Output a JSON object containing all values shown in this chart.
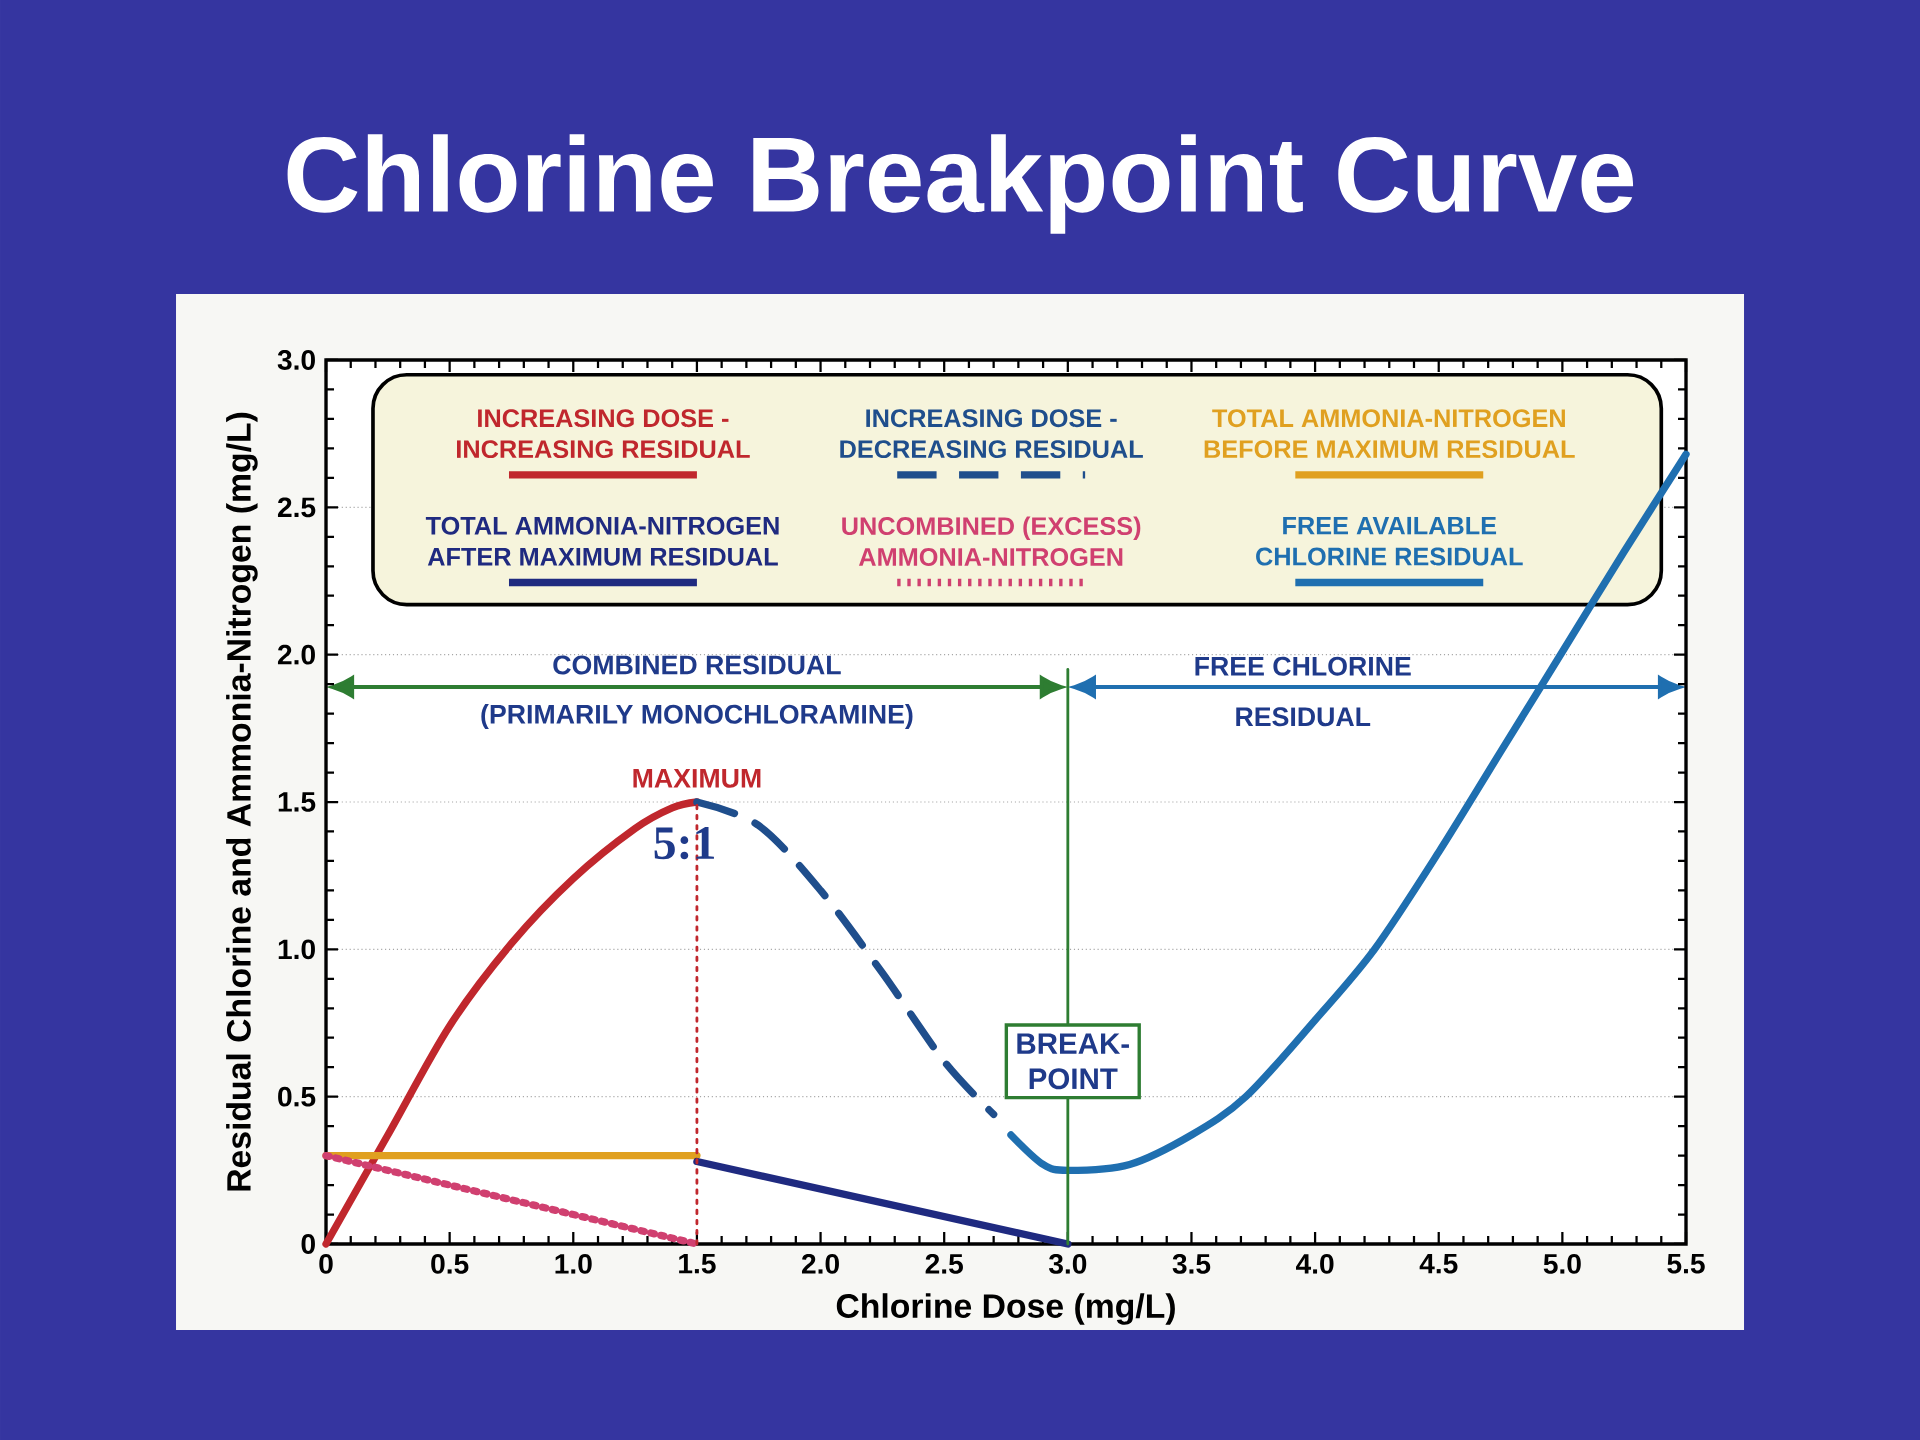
{
  "chart_data": {
    "type": "line",
    "title": "Chlorine Breakpoint Curve",
    "xlabel": "Chlorine Dose (mg/L)",
    "ylabel": "Residual Chlorine and Ammonia-Nitrogen (mg/L)",
    "xlim": [
      0,
      5.5
    ],
    "ylim": [
      0,
      3.0
    ],
    "xticks": [
      0,
      0.5,
      {
        "value": 1,
        "label": "1.0"
      },
      1.5,
      {
        "value": 2,
        "label": "2.0"
      },
      2.5,
      {
        "value": 3,
        "label": "3.0"
      },
      3.5,
      {
        "value": 4,
        "label": "4.0"
      },
      4.5,
      {
        "value": 5,
        "label": "5.0"
      },
      5.5
    ],
    "yticks": [
      0,
      0.5,
      {
        "value": 1,
        "label": "1.0"
      },
      1.5,
      {
        "value": 2,
        "label": "2.0"
      },
      2.5,
      {
        "value": 3,
        "label": "3.0"
      }
    ],
    "grid": "y",
    "legend": "top",
    "series": [
      {
        "name": "INCREASING DOSE - INCREASING RESIDUAL",
        "color": "#c0272d",
        "line_style": "solid",
        "x": [
          0,
          0.25,
          0.5,
          0.75,
          1.0,
          1.25,
          1.4,
          1.5
        ],
        "values": [
          0,
          0.37,
          0.74,
          1.02,
          1.24,
          1.41,
          1.48,
          1.5
        ]
      },
      {
        "name": "INCREASING DOSE - DECREASING RESIDUAL",
        "color": "#1f4e8c",
        "line_style": "dashed",
        "x": [
          1.5,
          1.75,
          2.0,
          2.25,
          2.5,
          2.7
        ],
        "values": [
          1.5,
          1.42,
          1.2,
          0.92,
          0.62,
          0.44
        ]
      },
      {
        "name": "TOTAL AMMONIA-NITROGEN BEFORE MAXIMUM RESIDUAL",
        "color": "#e0a020",
        "line_style": "solid",
        "x": [
          0,
          1.5
        ],
        "values": [
          0.3,
          0.3
        ]
      },
      {
        "name": "TOTAL AMMONIA-NITROGEN AFTER MAXIMUM RESIDUAL",
        "color": "#1f2a80",
        "line_style": "solid",
        "x": [
          1.5,
          3.0
        ],
        "values": [
          0.28,
          0
        ]
      },
      {
        "name": "UNCOMBINED (EXCESS) AMMONIA-NITROGEN",
        "color": "#d04070",
        "line_style": "dotted",
        "x": [
          0,
          1.5
        ],
        "values": [
          0.3,
          0
        ]
      },
      {
        "name": "FREE AVAILABLE CHLORINE RESIDUAL",
        "color": "#1f6fb0",
        "line_style": "solid",
        "x": [
          2.77,
          2.9,
          3.0,
          3.25,
          3.5,
          3.72,
          4.0,
          4.24,
          4.5,
          4.75,
          5.0,
          5.25,
          5.5
        ],
        "values": [
          0.37,
          0.27,
          0.25,
          0.27,
          0.37,
          0.5,
          0.76,
          1.0,
          1.33,
          1.67,
          2.01,
          2.35,
          2.68
        ]
      },
      {
        "color": "#c0272d",
        "line_style": "dotted",
        "x": [
          1.5,
          1.5
        ],
        "values": [
          0,
          1.5
        ]
      },
      {
        "color": "#2e7d32",
        "line_style": "solid",
        "x": [
          3.0,
          3.0
        ],
        "values": [
          0,
          1.95
        ]
      }
    ],
    "annotations": [
      "COMBINED RESIDUAL",
      "(PRIMARILY MONOCHLORAMINE)",
      "FREE CHLORINE RESIDUAL",
      "MAXIMUM",
      "5:1",
      "BREAK- POINT"
    ]
  }
}
